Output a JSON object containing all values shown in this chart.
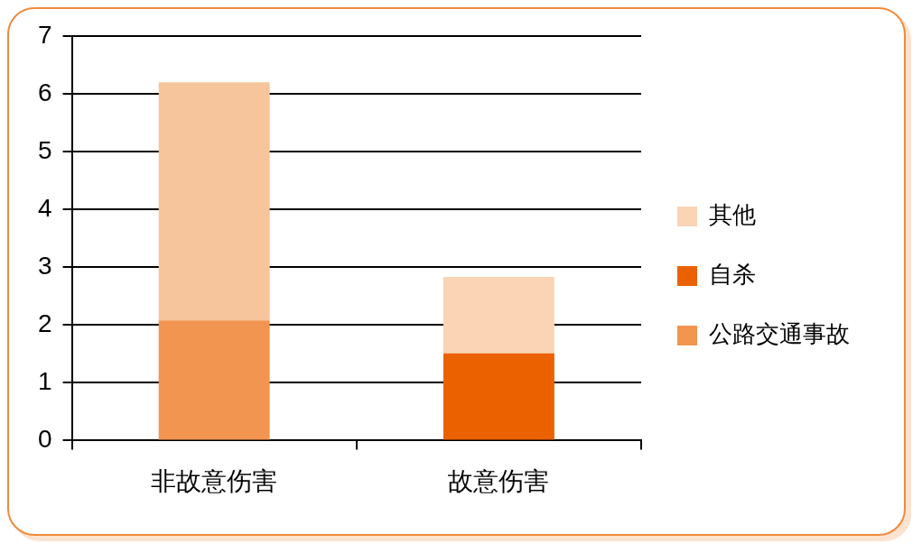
{
  "chart_data": {
    "type": "bar",
    "stacked": true,
    "categories": [
      "非故意伤害",
      "故意伤害"
    ],
    "series": [
      {
        "name": "公路交通事故",
        "color": "#f19550",
        "values": [
          2.08,
          null
        ]
      },
      {
        "name": "自杀",
        "color": "#eb6100",
        "values": [
          null,
          1.51
        ]
      },
      {
        "name": "其他",
        "color": "#fad4b5",
        "colors": [
          "#f7c59b",
          "#fad4b5"
        ],
        "values": [
          4.12,
          1.32
        ]
      }
    ],
    "ylim": [
      0,
      7
    ],
    "yticks": [
      0,
      1,
      2,
      3,
      4,
      5,
      6,
      7
    ],
    "grid": "y",
    "legend": "right"
  }
}
